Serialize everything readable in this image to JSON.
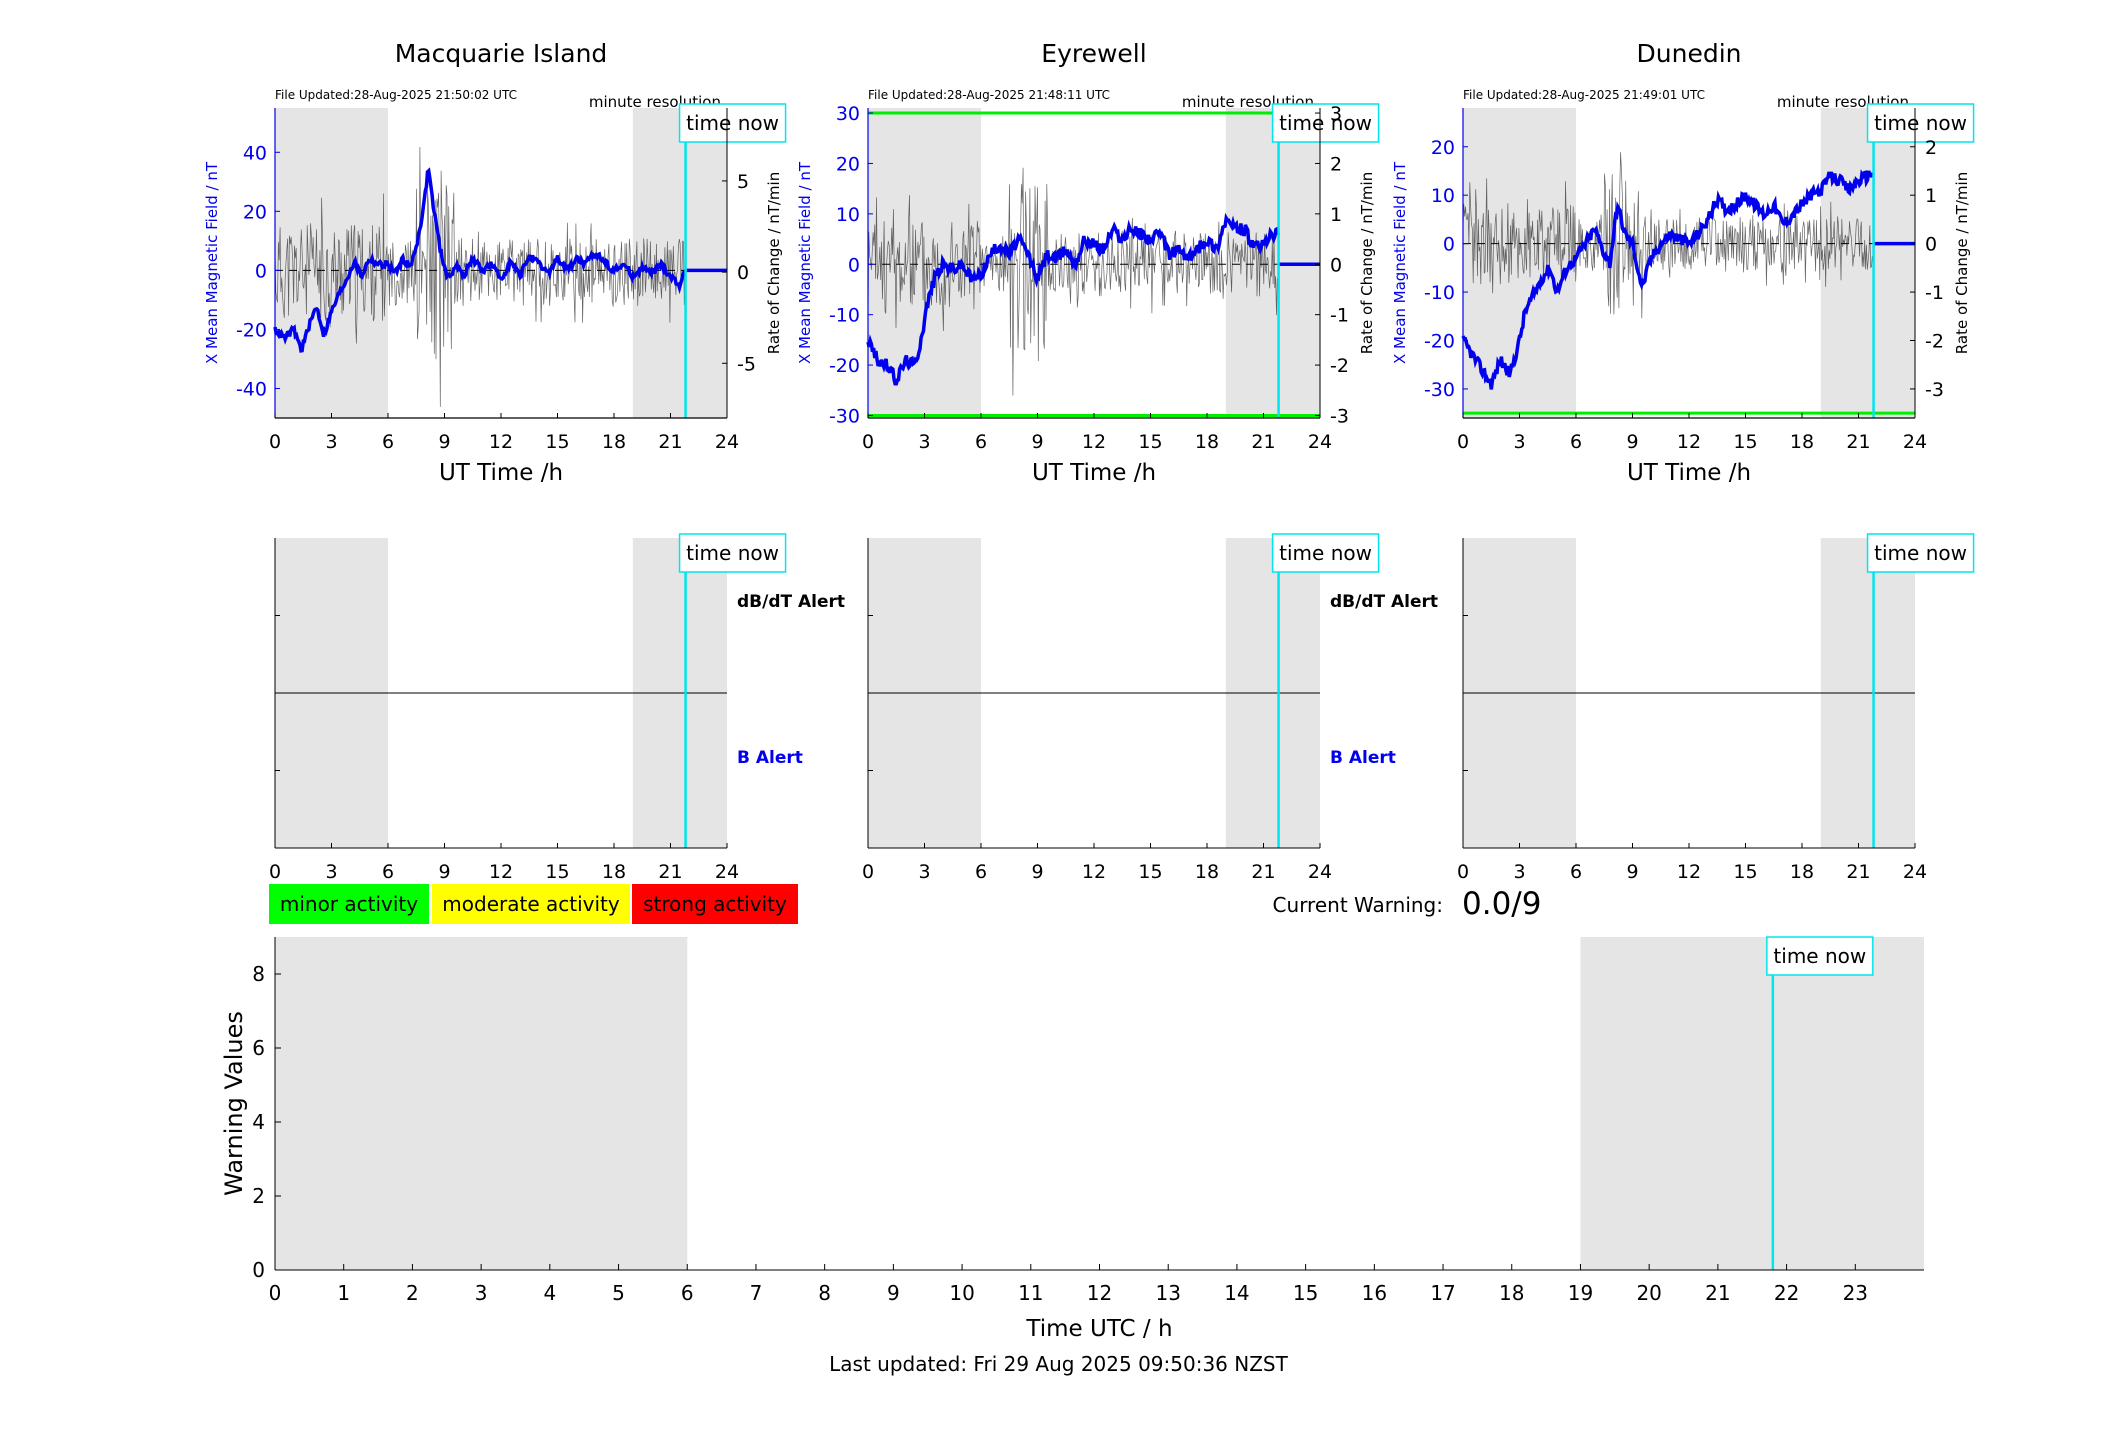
{
  "panels": [
    {
      "title": "Macquarie Island",
      "file_updated": "File Updated:28-Aug-2025 21:50:02 UTC",
      "resolution": "minute resolution",
      "time_now_label": "time now",
      "left_ylabel": "X Mean Magnetic Field / nT",
      "right_ylabel": "Rate of Change / nT/min",
      "xlabel": "UT Time /h",
      "left_ylim": [
        -50,
        55
      ],
      "left_ticks": [
        -40,
        -20,
        0,
        20,
        40
      ],
      "right_ylim": [
        -8,
        9
      ],
      "right_ticks": [
        -5,
        0,
        5
      ],
      "x_ticks": [
        0,
        3,
        6,
        9,
        12,
        15,
        18,
        21,
        24
      ],
      "threshold_lines": [],
      "shade": [
        [
          0,
          6
        ],
        [
          19,
          24
        ]
      ],
      "time_now": 21.8,
      "alert_labels": {
        "dbdt": "dB/dT Alert",
        "b": "B Alert"
      },
      "seed": 11,
      "b_series": [
        [
          0,
          -20
        ],
        [
          0.5,
          -23
        ],
        [
          1,
          -20
        ],
        [
          1.4,
          -27
        ],
        [
          1.8,
          -19
        ],
        [
          2.2,
          -12
        ],
        [
          2.6,
          -22
        ],
        [
          3,
          -14
        ],
        [
          3.4,
          -8
        ],
        [
          3.8,
          -3
        ],
        [
          4.2,
          3
        ],
        [
          4.6,
          -2
        ],
        [
          5,
          4
        ],
        [
          5.5,
          2
        ],
        [
          6,
          2
        ],
        [
          6.4,
          -1
        ],
        [
          6.8,
          4
        ],
        [
          7.2,
          1
        ],
        [
          7.6,
          11
        ],
        [
          7.9,
          22
        ],
        [
          8.15,
          35
        ],
        [
          8.4,
          22
        ],
        [
          8.8,
          6
        ],
        [
          9.2,
          -3
        ],
        [
          9.6,
          2
        ],
        [
          10,
          -2
        ],
        [
          10.5,
          4
        ],
        [
          11,
          0
        ],
        [
          11.5,
          2
        ],
        [
          12,
          -3
        ],
        [
          12.5,
          3
        ],
        [
          13,
          -2
        ],
        [
          13.5,
          5
        ],
        [
          14,
          2
        ],
        [
          14.5,
          -1
        ],
        [
          15,
          4
        ],
        [
          15.5,
          0
        ],
        [
          16,
          4
        ],
        [
          16.5,
          2
        ],
        [
          17,
          6
        ],
        [
          17.5,
          3
        ],
        [
          18,
          0
        ],
        [
          18.5,
          2
        ],
        [
          19,
          -2
        ],
        [
          19.5,
          1
        ],
        [
          20,
          -1
        ],
        [
          20.5,
          2
        ],
        [
          21,
          -2
        ],
        [
          21.5,
          -5
        ],
        [
          21.8,
          0
        ]
      ],
      "post_now_value": 0
    },
    {
      "title": "Eyrewell",
      "file_updated": "File Updated:28-Aug-2025 21:48:11 UTC",
      "resolution": "minute resolution",
      "time_now_label": "time now",
      "left_ylabel": "X Mean Magnetic Field / nT",
      "right_ylabel": "Rate of Change / nT/min",
      "xlabel": "UT Time /h",
      "left_ylim": [
        -30.5,
        31
      ],
      "left_ticks": [
        -30,
        -20,
        -10,
        0,
        10,
        20,
        30
      ],
      "right_ylim": [
        -3.05,
        3.1
      ],
      "right_ticks": [
        -3,
        -2,
        -1,
        0,
        1,
        2,
        3
      ],
      "x_ticks": [
        0,
        3,
        6,
        9,
        12,
        15,
        18,
        21,
        24
      ],
      "threshold_lines": [
        -30,
        30
      ],
      "shade": [
        [
          0,
          6
        ],
        [
          19,
          24
        ]
      ],
      "time_now": 21.8,
      "alert_labels": {
        "dbdt": "dB/dT Alert",
        "b": "B Alert"
      },
      "seed": 23,
      "b_series": [
        [
          0,
          -15
        ],
        [
          0.5,
          -19
        ],
        [
          1,
          -20
        ],
        [
          1.5,
          -23
        ],
        [
          2,
          -19
        ],
        [
          2.5,
          -20
        ],
        [
          2.8,
          -15
        ],
        [
          3.2,
          -7
        ],
        [
          3.6,
          -2
        ],
        [
          4,
          0
        ],
        [
          4.5,
          -1
        ],
        [
          5,
          0
        ],
        [
          5.5,
          -3
        ],
        [
          6,
          -2
        ],
        [
          6.5,
          2
        ],
        [
          7,
          4
        ],
        [
          7.5,
          2
        ],
        [
          8,
          5
        ],
        [
          8.5,
          2
        ],
        [
          9,
          -3
        ],
        [
          9.5,
          2
        ],
        [
          10,
          1
        ],
        [
          10.5,
          3
        ],
        [
          11,
          0
        ],
        [
          11.5,
          5
        ],
        [
          12,
          4
        ],
        [
          12.5,
          3
        ],
        [
          13,
          7
        ],
        [
          13.5,
          5
        ],
        [
          14,
          7
        ],
        [
          14.5,
          6
        ],
        [
          15,
          5
        ],
        [
          15.5,
          6
        ],
        [
          16,
          2
        ],
        [
          16.5,
          3
        ],
        [
          17,
          1
        ],
        [
          17.5,
          3
        ],
        [
          18,
          5
        ],
        [
          18.5,
          3
        ],
        [
          19,
          9
        ],
        [
          19.5,
          7
        ],
        [
          20,
          7
        ],
        [
          20.5,
          3
        ],
        [
          21,
          4
        ],
        [
          21.5,
          6
        ],
        [
          21.8,
          6
        ]
      ],
      "post_now_value": 0
    },
    {
      "title": "Dunedin",
      "file_updated": "File Updated:28-Aug-2025 21:49:01 UTC",
      "resolution": "minute resolution",
      "time_now_label": "time now",
      "left_ylabel": "X Mean Magnetic Field / nT",
      "right_ylabel": "Rate of Change / nT/min",
      "xlabel": "UT Time /h",
      "left_ylim": [
        -36,
        28
      ],
      "left_ticks": [
        -30,
        -20,
        -10,
        0,
        10,
        20
      ],
      "right_ylim": [
        -3.6,
        2.8
      ],
      "right_ticks": [
        -3,
        -2,
        -1,
        0,
        1,
        2
      ],
      "x_ticks": [
        0,
        3,
        6,
        9,
        12,
        15,
        18,
        21,
        24
      ],
      "threshold_lines": [
        -35
      ],
      "shade": [
        [
          0,
          6
        ],
        [
          19,
          24
        ]
      ],
      "time_now": 21.8,
      "alert_labels": {
        "dbdt": "",
        "b": ""
      },
      "seed": 37,
      "b_series": [
        [
          0,
          -20
        ],
        [
          0.5,
          -23
        ],
        [
          1,
          -26
        ],
        [
          1.5,
          -29
        ],
        [
          2,
          -24
        ],
        [
          2.5,
          -27
        ],
        [
          3,
          -20
        ],
        [
          3.3,
          -14
        ],
        [
          3.7,
          -11
        ],
        [
          4.2,
          -7
        ],
        [
          4.6,
          -5
        ],
        [
          5,
          -10
        ],
        [
          5.5,
          -5
        ],
        [
          6,
          -3
        ],
        [
          6.5,
          0
        ],
        [
          7,
          3
        ],
        [
          7.5,
          -2
        ],
        [
          7.8,
          -4
        ],
        [
          8.2,
          8
        ],
        [
          8.6,
          2
        ],
        [
          9,
          0
        ],
        [
          9.5,
          -9
        ],
        [
          10,
          -3
        ],
        [
          10.5,
          0
        ],
        [
          11,
          2
        ],
        [
          11.5,
          1
        ],
        [
          12,
          0
        ],
        [
          12.5,
          2
        ],
        [
          13,
          5
        ],
        [
          13.5,
          9
        ],
        [
          14,
          7
        ],
        [
          14.5,
          8
        ],
        [
          15,
          10
        ],
        [
          15.5,
          8
        ],
        [
          16,
          6
        ],
        [
          16.5,
          8
        ],
        [
          17,
          4
        ],
        [
          17.5,
          6
        ],
        [
          18,
          8
        ],
        [
          18.5,
          10
        ],
        [
          19,
          11
        ],
        [
          19.5,
          14
        ],
        [
          20,
          13
        ],
        [
          20.5,
          11
        ],
        [
          21,
          13
        ],
        [
          21.5,
          14
        ],
        [
          21.8,
          15
        ]
      ],
      "post_now_value": 0
    }
  ],
  "legend": {
    "minor": "minor activity",
    "moderate": "moderate activity",
    "strong": "strong activity",
    "colors": {
      "minor": "#00ff00",
      "moderate": "#ffff00",
      "strong": "#ff0000"
    }
  },
  "current_warning": {
    "label": "Current Warning:",
    "value": "0.0/9"
  },
  "chart_data": {
    "type": "bar",
    "ylabel": "Warning Values",
    "xlabel": "Time UTC / h",
    "xlim": [
      0,
      24
    ],
    "ylim": [
      0,
      9
    ],
    "y_ticks": [
      0,
      2,
      4,
      6,
      8
    ],
    "x_ticks": [
      0,
      1,
      2,
      3,
      4,
      5,
      6,
      7,
      8,
      9,
      10,
      11,
      12,
      13,
      14,
      15,
      16,
      17,
      18,
      19,
      20,
      21,
      22,
      23
    ],
    "shade": [
      [
        0,
        6
      ],
      [
        19,
        24
      ]
    ],
    "time_now": 21.8,
    "time_now_label": "time now",
    "values": []
  },
  "footer": {
    "last_updated": "Last updated: Fri 29 Aug 2025 09:50:36 NZST"
  },
  "colors": {
    "field": "#0000ee",
    "rate": "#333333",
    "threshold": "#00ee00",
    "time_now": "#00e5ee",
    "shade": "#e5e5e5",
    "alert_b": "#0000ee"
  }
}
